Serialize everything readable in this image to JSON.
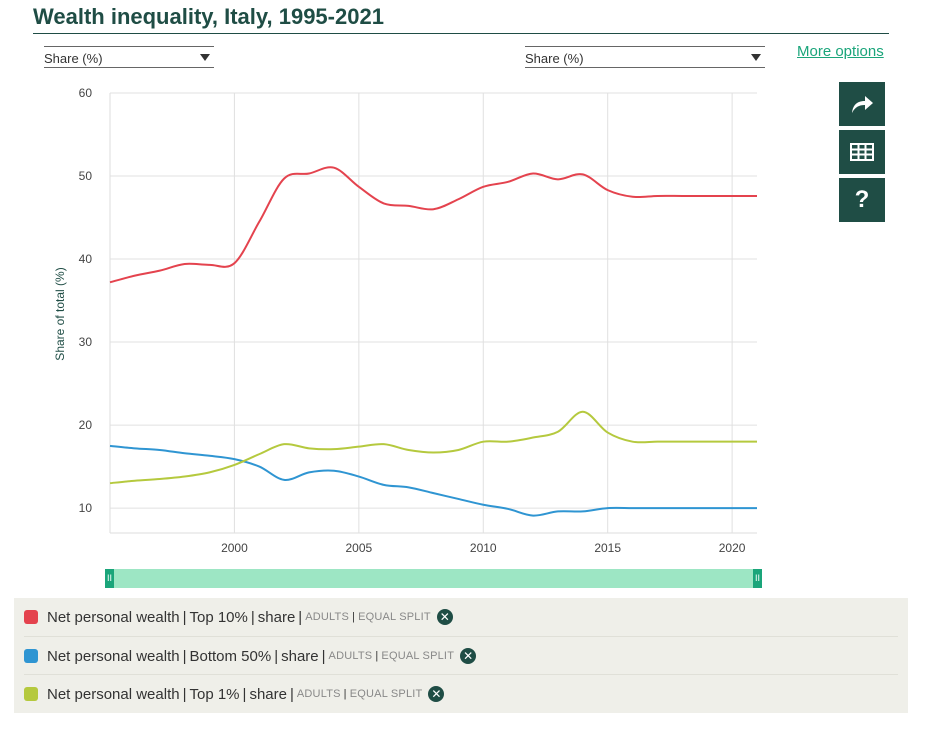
{
  "title": "Wealth inequality, Italy, 1995-2021",
  "selects": {
    "left": {
      "value": "Share (%)"
    },
    "right": {
      "value": "Share (%)"
    }
  },
  "more_options": "More options",
  "tools": {
    "share": "share-icon",
    "table": "table-icon",
    "help_label": "?"
  },
  "colors": {
    "accent": "#1f4d45",
    "link": "#1aa57a",
    "navigator": "#9de6c4",
    "top10": "#e4434e",
    "bottom50": "#2f95d2",
    "top1": "#b5c93e"
  },
  "chart_data": {
    "type": "line",
    "title": "",
    "xlabel": "",
    "ylabel": "Share of total (%)",
    "xlim": [
      1995,
      2021
    ],
    "ylim": [
      7,
      60
    ],
    "yticks": [
      10,
      20,
      30,
      40,
      50,
      60
    ],
    "xticks": [
      2000,
      2005,
      2010,
      2015,
      2020
    ],
    "grid": true,
    "x": [
      1995,
      1996,
      1997,
      1998,
      1999,
      2000,
      2001,
      2002,
      2003,
      2004,
      2005,
      2006,
      2007,
      2008,
      2009,
      2010,
      2011,
      2012,
      2013,
      2014,
      2015,
      2016,
      2017,
      2018,
      2019,
      2020,
      2021
    ],
    "series": [
      {
        "name": "Net personal wealth | Top 10% | share",
        "color": "#e4434e",
        "values": [
          37.2,
          38.0,
          38.6,
          39.4,
          39.3,
          39.5,
          44.5,
          49.7,
          50.3,
          51.0,
          48.7,
          46.7,
          46.4,
          46.0,
          47.2,
          48.7,
          49.3,
          50.3,
          49.6,
          50.2,
          48.3,
          47.5,
          47.6,
          47.6,
          47.6,
          47.6,
          47.6
        ]
      },
      {
        "name": "Net personal wealth | Bottom 50% | share",
        "color": "#2f95d2",
        "values": [
          17.5,
          17.2,
          17.0,
          16.6,
          16.3,
          15.9,
          15.0,
          13.4,
          14.3,
          14.5,
          13.8,
          12.8,
          12.5,
          11.8,
          11.1,
          10.4,
          9.9,
          9.1,
          9.6,
          9.6,
          10.0,
          10.0,
          10.0,
          10.0,
          10.0,
          10.0,
          10.0
        ]
      },
      {
        "name": "Net personal wealth | Top 1% | share",
        "color": "#b5c93e",
        "values": [
          13.0,
          13.3,
          13.5,
          13.8,
          14.3,
          15.2,
          16.5,
          17.7,
          17.2,
          17.1,
          17.4,
          17.7,
          17.0,
          16.7,
          17.0,
          18.0,
          18.0,
          18.5,
          19.2,
          21.6,
          19.1,
          18.0,
          18.0,
          18.0,
          18.0,
          18.0,
          18.0
        ]
      }
    ]
  },
  "legend": [
    {
      "metric": "Net personal wealth",
      "group": "Top 10%",
      "stat": "share",
      "pop": "ADULTS",
      "split": "EQUAL SPLIT",
      "color": "#e4434e"
    },
    {
      "metric": "Net personal wealth",
      "group": "Bottom 50%",
      "stat": "share",
      "pop": "ADULTS",
      "split": "EQUAL SPLIT",
      "color": "#2f95d2"
    },
    {
      "metric": "Net personal wealth",
      "group": "Top 1%",
      "stat": "share",
      "pop": "ADULTS",
      "split": "EQUAL SPLIT",
      "color": "#b5c93e"
    }
  ],
  "remove_glyph": "✕",
  "handle_glyph": "II"
}
